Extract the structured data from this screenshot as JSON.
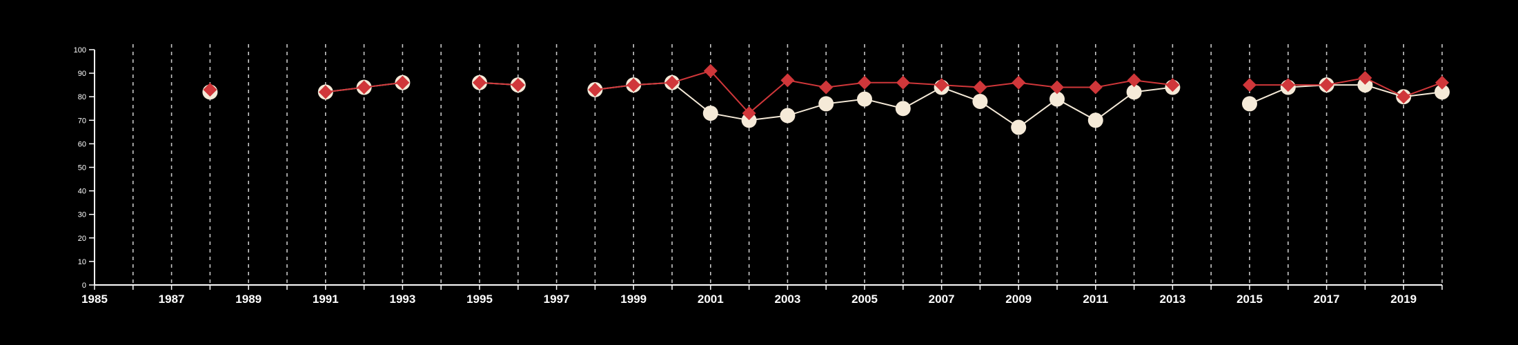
{
  "chart_data": {
    "type": "line",
    "title": "",
    "xlabel": "",
    "ylabel": "",
    "xlim": [
      1985,
      2020
    ],
    "ylim": [
      0,
      100
    ],
    "y_ticks": [
      0,
      10,
      20,
      30,
      40,
      50,
      60,
      70,
      80,
      90,
      100
    ],
    "x_ticks": [
      1985,
      1987,
      1989,
      1991,
      1993,
      1995,
      1997,
      1999,
      2001,
      2003,
      2005,
      2007,
      2009,
      2011,
      2013,
      2015,
      2017,
      2019
    ],
    "grid": {
      "vertical": true,
      "horizontal": false,
      "style": "dashed"
    },
    "background": "#000000",
    "series": [
      {
        "marker": "circle",
        "color": "#f5ead8",
        "line_color": "#f5ead8",
        "points": [
          [
            1988,
            82
          ],
          [
            1991,
            82
          ],
          [
            1992,
            84
          ],
          [
            1993,
            86
          ],
          [
            1995,
            86
          ],
          [
            1996,
            85
          ],
          [
            1998,
            83
          ],
          [
            1999,
            85
          ],
          [
            2000,
            86
          ],
          [
            2001,
            73
          ],
          [
            2002,
            70
          ],
          [
            2003,
            72
          ],
          [
            2004,
            77
          ],
          [
            2005,
            79
          ],
          [
            2006,
            75
          ],
          [
            2007,
            84
          ],
          [
            2008,
            78
          ],
          [
            2009,
            67
          ],
          [
            2010,
            79
          ],
          [
            2011,
            70
          ],
          [
            2012,
            82
          ],
          [
            2013,
            84
          ],
          [
            2015,
            77
          ],
          [
            2016,
            84
          ],
          [
            2017,
            85
          ],
          [
            2018,
            85
          ],
          [
            2019,
            80
          ],
          [
            2020,
            82
          ]
        ]
      },
      {
        "marker": "diamond",
        "color": "#d0373a",
        "line_color": "#d0373a",
        "points": [
          [
            1988,
            83
          ],
          [
            1991,
            82
          ],
          [
            1992,
            84
          ],
          [
            1993,
            86
          ],
          [
            1995,
            86
          ],
          [
            1996,
            85
          ],
          [
            1998,
            83
          ],
          [
            1999,
            85
          ],
          [
            2000,
            86
          ],
          [
            2001,
            91
          ],
          [
            2002,
            73
          ],
          [
            2003,
            87
          ],
          [
            2004,
            84
          ],
          [
            2005,
            86
          ],
          [
            2006,
            86
          ],
          [
            2007,
            85
          ],
          [
            2008,
            84
          ],
          [
            2009,
            86
          ],
          [
            2010,
            84
          ],
          [
            2011,
            84
          ],
          [
            2012,
            87
          ],
          [
            2013,
            85
          ],
          [
            2015,
            85
          ],
          [
            2016,
            85
          ],
          [
            2017,
            85
          ],
          [
            2018,
            88
          ],
          [
            2019,
            80
          ],
          [
            2020,
            86
          ]
        ]
      }
    ]
  }
}
